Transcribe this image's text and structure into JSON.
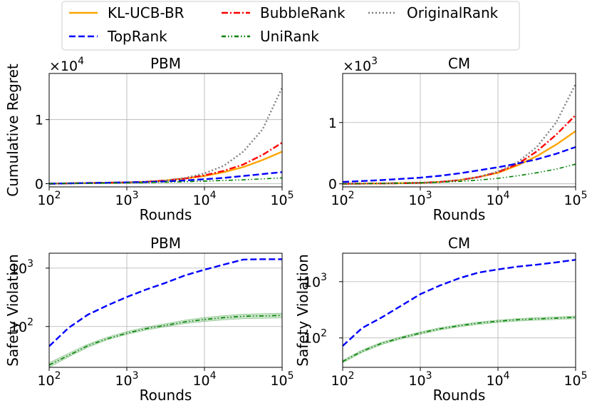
{
  "legend": [
    {
      "label": "KL-UCB-BR",
      "color": "#ffa500",
      "style": "solid"
    },
    {
      "label": "BubbleRank",
      "color": "#ff0000",
      "style": "dashdot"
    },
    {
      "label": "OriginalRank",
      "color": "#808080",
      "style": "dotted"
    },
    {
      "label": "TopRank",
      "color": "#0000ff",
      "style": "dashed"
    },
    {
      "label": "UniRank",
      "color": "#008000",
      "style": "dashdotdot"
    }
  ],
  "chart_data": [
    {
      "type": "line",
      "title": "PBM",
      "xlabel": "Rounds",
      "ylabel": "Cumulative Regret",
      "yscale_note": "×10^4",
      "xscale": "log",
      "xlim": [
        100,
        100000
      ],
      "ylim": [
        -0.05,
        1.72
      ],
      "xticks": [
        {
          "v": 100,
          "b": "10",
          "e": "2"
        },
        {
          "v": 1000,
          "b": "10",
          "e": "3"
        },
        {
          "v": 10000,
          "b": "10",
          "e": "4"
        },
        {
          "v": 100000,
          "b": "10",
          "e": "5"
        }
      ],
      "yticks": [
        {
          "v": 0,
          "t": "0"
        },
        {
          "v": 1,
          "t": "1"
        }
      ],
      "grid": true,
      "x": [
        100,
        178,
        316,
        562,
        1000,
        1778,
        3162,
        5623,
        10000,
        17783,
        31623,
        56234,
        100000
      ],
      "series": [
        {
          "name": "KL-UCB-BR",
          "color": "#ffa500",
          "style": "solid",
          "values": [
            0.0,
            0.005,
            0.01,
            0.015,
            0.02,
            0.03,
            0.05,
            0.08,
            0.12,
            0.18,
            0.26,
            0.37,
            0.5
          ]
        },
        {
          "name": "BubbleRank",
          "color": "#ff0000",
          "style": "dashdot",
          "values": [
            0.0,
            0.005,
            0.01,
            0.015,
            0.02,
            0.03,
            0.05,
            0.08,
            0.13,
            0.2,
            0.3,
            0.45,
            0.64
          ]
        },
        {
          "name": "OriginalRank",
          "color": "#808080",
          "style": "dotted",
          "values": [
            0.0,
            0.004,
            0.008,
            0.012,
            0.02,
            0.03,
            0.05,
            0.09,
            0.16,
            0.28,
            0.5,
            0.85,
            1.5
          ]
        },
        {
          "name": "TopRank",
          "color": "#0000ff",
          "style": "dashed",
          "values": [
            0.0,
            0.005,
            0.01,
            0.015,
            0.02,
            0.025,
            0.035,
            0.05,
            0.07,
            0.09,
            0.12,
            0.15,
            0.18
          ]
        },
        {
          "name": "UniRank",
          "color": "#008000",
          "style": "dashdotdot",
          "values": [
            0.0,
            0.003,
            0.006,
            0.009,
            0.012,
            0.017,
            0.023,
            0.03,
            0.04,
            0.05,
            0.06,
            0.075,
            0.09
          ]
        }
      ]
    },
    {
      "type": "line",
      "title": "CM",
      "xlabel": "Rounds",
      "ylabel": "",
      "yscale_note": "×10^3",
      "xscale": "log",
      "xlim": [
        100,
        100000
      ],
      "ylim": [
        -0.05,
        1.8
      ],
      "xticks": [
        {
          "v": 100,
          "b": "10",
          "e": "2"
        },
        {
          "v": 1000,
          "b": "10",
          "e": "3"
        },
        {
          "v": 10000,
          "b": "10",
          "e": "4"
        },
        {
          "v": 100000,
          "b": "10",
          "e": "5"
        }
      ],
      "yticks": [
        {
          "v": 0,
          "t": "0"
        },
        {
          "v": 1,
          "t": "1"
        }
      ],
      "grid": true,
      "x": [
        100,
        178,
        316,
        562,
        1000,
        1778,
        3162,
        5623,
        10000,
        17783,
        31623,
        56234,
        100000
      ],
      "series": [
        {
          "name": "KL-UCB-BR",
          "color": "#ffa500",
          "style": "solid",
          "values": [
            0.0,
            0.003,
            0.006,
            0.01,
            0.016,
            0.03,
            0.06,
            0.11,
            0.18,
            0.3,
            0.45,
            0.64,
            0.86
          ]
        },
        {
          "name": "BubbleRank",
          "color": "#ff0000",
          "style": "dashdot",
          "values": [
            0.0,
            0.003,
            0.006,
            0.01,
            0.016,
            0.03,
            0.06,
            0.11,
            0.19,
            0.32,
            0.53,
            0.8,
            1.12
          ]
        },
        {
          "name": "OriginalRank",
          "color": "#808080",
          "style": "dotted",
          "values": [
            0.0,
            0.003,
            0.006,
            0.01,
            0.016,
            0.03,
            0.06,
            0.11,
            0.2,
            0.35,
            0.6,
            1.0,
            1.63
          ]
        },
        {
          "name": "TopRank",
          "color": "#0000ff",
          "style": "dashed",
          "values": [
            0.03,
            0.045,
            0.06,
            0.08,
            0.1,
            0.13,
            0.17,
            0.22,
            0.27,
            0.33,
            0.4,
            0.49,
            0.6
          ]
        },
        {
          "name": "UniRank",
          "color": "#008000",
          "style": "dashdotdot",
          "values": [
            0.0,
            0.003,
            0.006,
            0.01,
            0.016,
            0.025,
            0.04,
            0.06,
            0.09,
            0.13,
            0.18,
            0.24,
            0.32
          ]
        }
      ]
    },
    {
      "type": "line",
      "title": "PBM",
      "xlabel": "Rounds",
      "ylabel": "Safety Violation",
      "xscale": "log",
      "yscale": "log",
      "xlim": [
        100,
        100000
      ],
      "ylim": [
        20,
        1800
      ],
      "xticks": [
        {
          "v": 100,
          "b": "10",
          "e": "2"
        },
        {
          "v": 1000,
          "b": "10",
          "e": "3"
        },
        {
          "v": 10000,
          "b": "10",
          "e": "4"
        },
        {
          "v": 100000,
          "b": "10",
          "e": "5"
        }
      ],
      "yticks": [
        {
          "v": 100,
          "b": "10",
          "e": "2"
        },
        {
          "v": 1000,
          "b": "10",
          "e": "3"
        }
      ],
      "grid": true,
      "x": [
        100,
        178,
        316,
        562,
        1000,
        1778,
        3162,
        5623,
        10000,
        17783,
        31623,
        56234,
        100000
      ],
      "series": [
        {
          "name": "TopRank",
          "color": "#0000ff",
          "style": "dashed",
          "values": [
            46,
            95,
            160,
            230,
            320,
            430,
            560,
            750,
            940,
            1150,
            1400,
            1420,
            1420
          ]
        },
        {
          "name": "UniRank",
          "color": "#008000",
          "style": "dashdotdot",
          "values": [
            22,
            32,
            47,
            62,
            77,
            92,
            105,
            120,
            132,
            142,
            150,
            152,
            155
          ],
          "band_low": [
            20,
            30,
            44,
            59,
            73,
            87,
            99,
            112,
            122,
            130,
            136,
            138,
            140
          ],
          "band_high": [
            24,
            35,
            50,
            66,
            82,
            98,
            112,
            129,
            143,
            154,
            163,
            166,
            170
          ]
        }
      ]
    },
    {
      "type": "line",
      "title": "CM",
      "xlabel": "Rounds",
      "ylabel": "Safety Violation",
      "xscale": "log",
      "yscale": "log",
      "xlim": [
        100,
        100000
      ],
      "ylim": [
        30,
        3200
      ],
      "xticks": [
        {
          "v": 100,
          "b": "10",
          "e": "2"
        },
        {
          "v": 1000,
          "b": "10",
          "e": "3"
        },
        {
          "v": 10000,
          "b": "10",
          "e": "4"
        },
        {
          "v": 100000,
          "b": "10",
          "e": "5"
        }
      ],
      "yticks": [
        {
          "v": 100,
          "b": "10",
          "e": "2"
        },
        {
          "v": 1000,
          "b": "10",
          "e": "3"
        }
      ],
      "grid": true,
      "x": [
        100,
        178,
        316,
        562,
        1000,
        1778,
        3162,
        5623,
        10000,
        17783,
        31623,
        56234,
        100000
      ],
      "series": [
        {
          "name": "TopRank",
          "color": "#0000ff",
          "style": "dashed",
          "values": [
            72,
            150,
            230,
            370,
            600,
            850,
            1150,
            1450,
            1650,
            1850,
            2000,
            2200,
            2450
          ]
        },
        {
          "name": "UniRank",
          "color": "#008000",
          "style": "dashdotdot",
          "values": [
            38,
            58,
            80,
            100,
            122,
            145,
            165,
            183,
            198,
            210,
            218,
            224,
            232
          ],
          "band_low": [
            36,
            55,
            76,
            95,
            116,
            138,
            157,
            174,
            188,
            199,
            206,
            212,
            218
          ],
          "band_high": [
            40,
            61,
            84,
            105,
            128,
            152,
            173,
            192,
            208,
            221,
            230,
            236,
            246
          ]
        }
      ]
    }
  ]
}
